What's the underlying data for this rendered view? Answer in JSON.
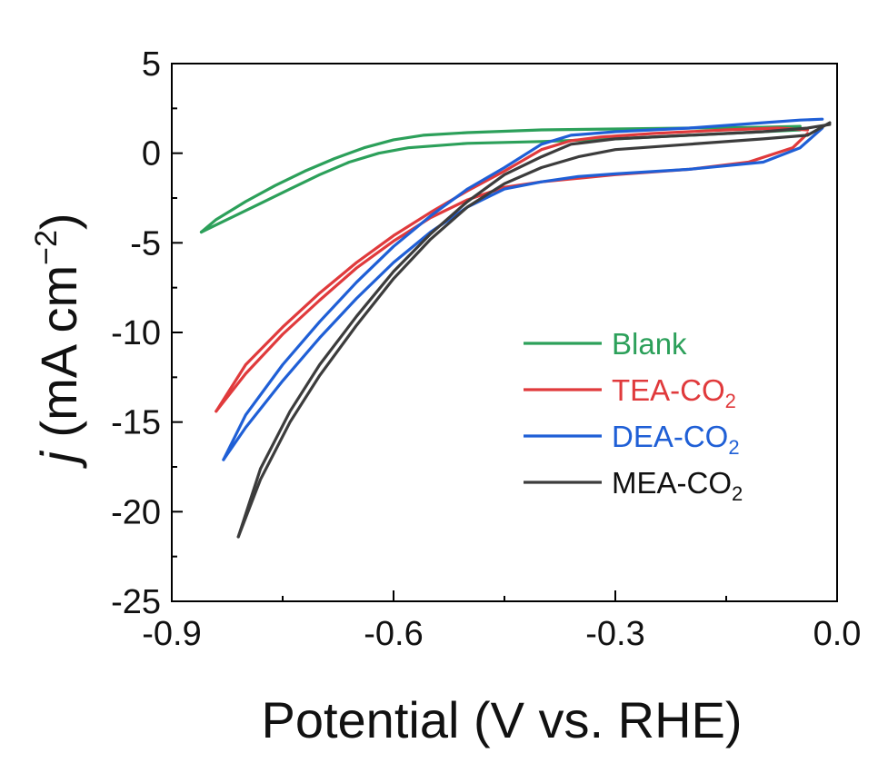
{
  "chart_data": {
    "type": "line",
    "title": "",
    "xlabel": "Potential (V vs. RHE)",
    "ylabel": {
      "italic": "j",
      "main": " (mA cm",
      "sup": "−2",
      "close": ")"
    },
    "xlim": [
      -0.9,
      0.0
    ],
    "ylim": [
      -25,
      5
    ],
    "x_ticks": [
      -0.9,
      -0.6,
      -0.3,
      0.0
    ],
    "x_tick_labels": [
      "-0.9",
      "-0.6",
      "-0.3",
      "0.0"
    ],
    "y_ticks": [
      5,
      0,
      -5,
      -10,
      -15,
      -20,
      -25
    ],
    "y_tick_labels": [
      "5",
      "0",
      "-5",
      "-10",
      "-15",
      "-20",
      "-25"
    ],
    "grid": false,
    "legend_position": "center-right",
    "series": [
      {
        "name": "Blank",
        "label_main": "Blank",
        "label_sub": "",
        "color": "#2ca05a",
        "forward": [
          [
            -0.86,
            -4.4
          ],
          [
            -0.82,
            -3.6
          ],
          [
            -0.78,
            -2.8
          ],
          [
            -0.74,
            -2.0
          ],
          [
            -0.7,
            -1.2
          ],
          [
            -0.66,
            -0.5
          ],
          [
            -0.62,
            0.0
          ],
          [
            -0.58,
            0.3
          ],
          [
            -0.5,
            0.55
          ],
          [
            -0.4,
            0.65
          ],
          [
            -0.3,
            0.8
          ],
          [
            -0.2,
            1.0
          ],
          [
            -0.1,
            1.2
          ],
          [
            -0.05,
            1.3
          ]
        ],
        "reverse": [
          [
            -0.05,
            1.5
          ],
          [
            -0.1,
            1.45
          ],
          [
            -0.2,
            1.4
          ],
          [
            -0.3,
            1.35
          ],
          [
            -0.4,
            1.3
          ],
          [
            -0.5,
            1.15
          ],
          [
            -0.56,
            1.0
          ],
          [
            -0.6,
            0.75
          ],
          [
            -0.64,
            0.3
          ],
          [
            -0.68,
            -0.3
          ],
          [
            -0.72,
            -1.0
          ],
          [
            -0.76,
            -1.8
          ],
          [
            -0.8,
            -2.7
          ],
          [
            -0.84,
            -3.7
          ],
          [
            -0.86,
            -4.4
          ]
        ]
      },
      {
        "name": "TEA-CO2",
        "label_main": "TEA-CO",
        "label_sub": "2",
        "color": "#e03a3c",
        "forward": [
          [
            -0.84,
            -14.4
          ],
          [
            -0.8,
            -12.3
          ],
          [
            -0.75,
            -10.1
          ],
          [
            -0.7,
            -8.2
          ],
          [
            -0.65,
            -6.4
          ],
          [
            -0.6,
            -4.9
          ],
          [
            -0.55,
            -3.6
          ],
          [
            -0.5,
            -2.6
          ],
          [
            -0.45,
            -1.9
          ],
          [
            -0.4,
            -1.6
          ],
          [
            -0.35,
            -1.4
          ],
          [
            -0.3,
            -1.2
          ],
          [
            -0.2,
            -0.9
          ],
          [
            -0.12,
            -0.5
          ],
          [
            -0.06,
            0.3
          ],
          [
            -0.04,
            1.1
          ]
        ],
        "reverse": [
          [
            -0.04,
            1.3
          ],
          [
            -0.08,
            1.4
          ],
          [
            -0.15,
            1.3
          ],
          [
            -0.25,
            1.1
          ],
          [
            -0.32,
            0.9
          ],
          [
            -0.36,
            0.7
          ],
          [
            -0.4,
            0.2
          ],
          [
            -0.45,
            -1.0
          ],
          [
            -0.5,
            -2.1
          ],
          [
            -0.55,
            -3.3
          ],
          [
            -0.6,
            -4.6
          ],
          [
            -0.65,
            -6.1
          ],
          [
            -0.7,
            -7.8
          ],
          [
            -0.75,
            -9.7
          ],
          [
            -0.8,
            -11.8
          ],
          [
            -0.84,
            -14.4
          ]
        ]
      },
      {
        "name": "DEA-CO2",
        "label_main": "DEA-CO",
        "label_sub": "2",
        "color": "#1f5fd6",
        "forward": [
          [
            -0.83,
            -17.1
          ],
          [
            -0.8,
            -15.3
          ],
          [
            -0.75,
            -12.7
          ],
          [
            -0.7,
            -10.3
          ],
          [
            -0.65,
            -8.1
          ],
          [
            -0.6,
            -6.1
          ],
          [
            -0.55,
            -4.4
          ],
          [
            -0.5,
            -3.0
          ],
          [
            -0.45,
            -2.0
          ],
          [
            -0.4,
            -1.6
          ],
          [
            -0.35,
            -1.3
          ],
          [
            -0.3,
            -1.15
          ],
          [
            -0.2,
            -0.9
          ],
          [
            -0.1,
            -0.5
          ],
          [
            -0.05,
            0.3
          ],
          [
            -0.02,
            1.4
          ]
        ],
        "reverse": [
          [
            -0.02,
            1.9
          ],
          [
            -0.05,
            1.85
          ],
          [
            -0.1,
            1.7
          ],
          [
            -0.2,
            1.4
          ],
          [
            -0.3,
            1.2
          ],
          [
            -0.36,
            1.0
          ],
          [
            -0.4,
            0.5
          ],
          [
            -0.45,
            -0.8
          ],
          [
            -0.5,
            -2.0
          ],
          [
            -0.55,
            -3.5
          ],
          [
            -0.6,
            -5.2
          ],
          [
            -0.65,
            -7.2
          ],
          [
            -0.7,
            -9.4
          ],
          [
            -0.75,
            -11.8
          ],
          [
            -0.8,
            -14.6
          ],
          [
            -0.83,
            -17.1
          ]
        ]
      },
      {
        "name": "MEA-CO2",
        "label_main": "MEA-CO",
        "label_sub": "2",
        "color": "#3c3c3c",
        "forward": [
          [
            -0.81,
            -21.4
          ],
          [
            -0.78,
            -18.2
          ],
          [
            -0.74,
            -15.0
          ],
          [
            -0.7,
            -12.4
          ],
          [
            -0.65,
            -9.6
          ],
          [
            -0.6,
            -7.0
          ],
          [
            -0.55,
            -4.8
          ],
          [
            -0.5,
            -3.0
          ],
          [
            -0.45,
            -1.7
          ],
          [
            -0.4,
            -0.8
          ],
          [
            -0.35,
            -0.2
          ],
          [
            -0.3,
            0.2
          ],
          [
            -0.2,
            0.5
          ],
          [
            -0.1,
            0.8
          ],
          [
            -0.04,
            1.0
          ],
          [
            -0.01,
            1.7
          ]
        ],
        "reverse": [
          [
            -0.01,
            1.6
          ],
          [
            -0.04,
            1.4
          ],
          [
            -0.1,
            1.2
          ],
          [
            -0.2,
            1.0
          ],
          [
            -0.3,
            0.8
          ],
          [
            -0.36,
            0.5
          ],
          [
            -0.4,
            -0.2
          ],
          [
            -0.45,
            -1.2
          ],
          [
            -0.5,
            -2.7
          ],
          [
            -0.55,
            -4.5
          ],
          [
            -0.6,
            -6.6
          ],
          [
            -0.65,
            -9.1
          ],
          [
            -0.7,
            -11.8
          ],
          [
            -0.74,
            -14.4
          ],
          [
            -0.78,
            -17.6
          ],
          [
            -0.81,
            -21.4
          ]
        ]
      }
    ]
  }
}
